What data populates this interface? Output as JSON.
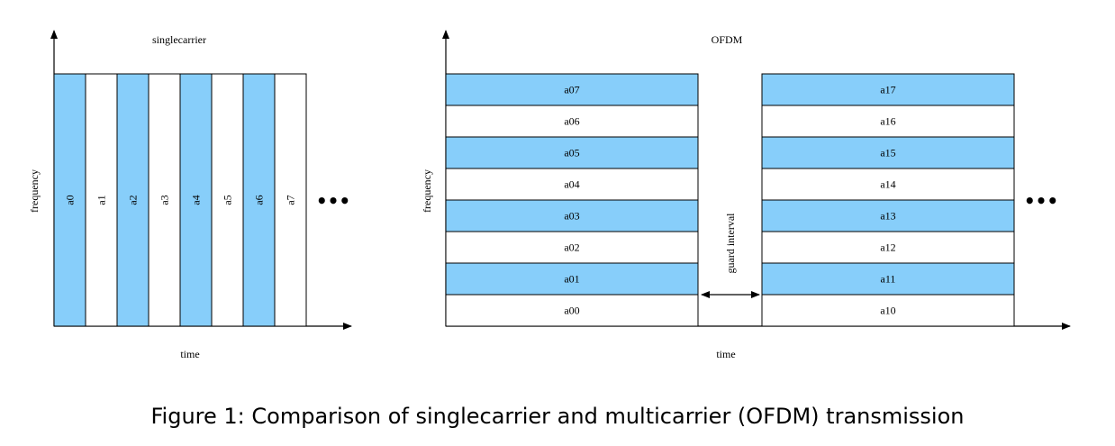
{
  "colors": {
    "filled": "#87cefa",
    "empty": "#ffffff",
    "stroke": "#000000"
  },
  "singlecarrier": {
    "title": "singlecarrier",
    "x_label": "time",
    "y_label": "frequency",
    "ellipsis": "•••",
    "slots": [
      {
        "label": "a0",
        "filled": true
      },
      {
        "label": "a1",
        "filled": false
      },
      {
        "label": "a2",
        "filled": true
      },
      {
        "label": "a3",
        "filled": false
      },
      {
        "label": "a4",
        "filled": true
      },
      {
        "label": "a5",
        "filled": false
      },
      {
        "label": "a6",
        "filled": true
      },
      {
        "label": "a7",
        "filled": false
      }
    ]
  },
  "ofdm": {
    "title": "OFDM",
    "x_label": "time",
    "y_label": "frequency",
    "ellipsis": "•••",
    "guard_label": "guard interval",
    "blocks": [
      {
        "rows": [
          {
            "label": "a07",
            "filled": true
          },
          {
            "label": "a06",
            "filled": false
          },
          {
            "label": "a05",
            "filled": true
          },
          {
            "label": "a04",
            "filled": false
          },
          {
            "label": "a03",
            "filled": true
          },
          {
            "label": "a02",
            "filled": false
          },
          {
            "label": "a01",
            "filled": true
          },
          {
            "label": "a00",
            "filled": false
          }
        ]
      },
      {
        "rows": [
          {
            "label": "a17",
            "filled": true
          },
          {
            "label": "a16",
            "filled": false
          },
          {
            "label": "a15",
            "filled": true
          },
          {
            "label": "a14",
            "filled": false
          },
          {
            "label": "a13",
            "filled": true
          },
          {
            "label": "a12",
            "filled": false
          },
          {
            "label": "a11",
            "filled": true
          },
          {
            "label": "a10",
            "filled": false
          }
        ]
      }
    ]
  },
  "caption": "Figure 1: Comparison of singlecarrier and multicarrier (OFDM) transmission"
}
